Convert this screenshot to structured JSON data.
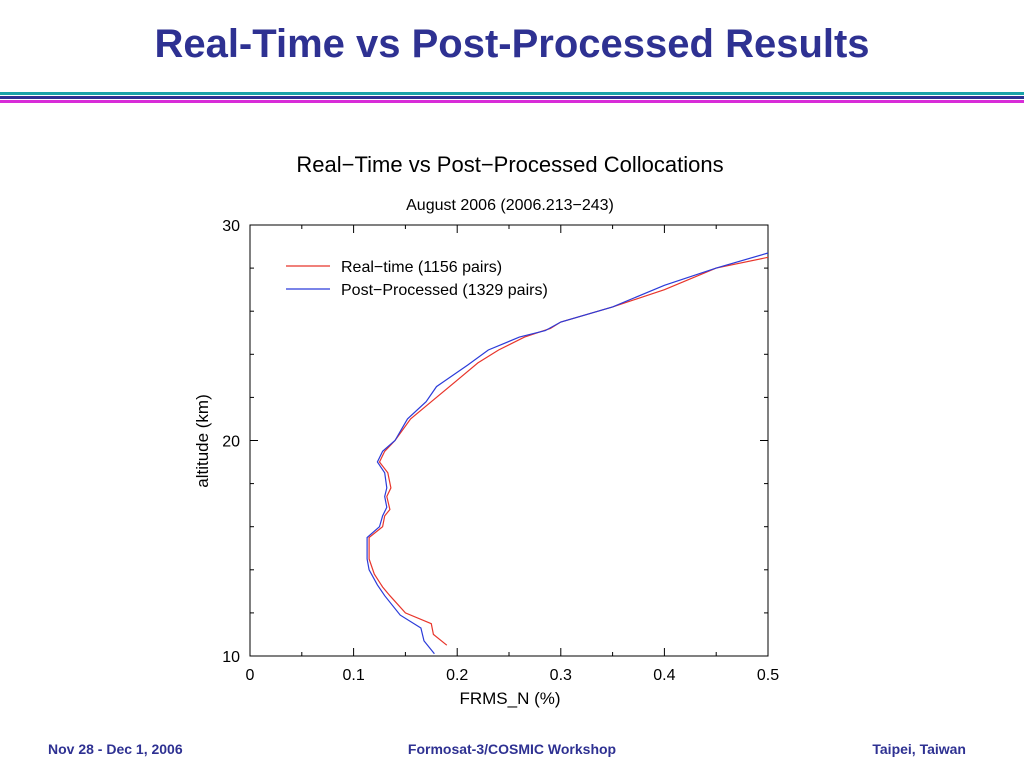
{
  "slide": {
    "title": "Real-Time vs Post-Processed Results"
  },
  "footer": {
    "left": "Nov 28 - Dec 1, 2006",
    "center": "Formosat-3/COSMIC Workshop",
    "right": "Taipei, Taiwan"
  },
  "colors": {
    "title_text": "#2e3192",
    "rule_teal": "#1aa3a8",
    "rule_navy": "#2e3192",
    "rule_magenta": "#d82cd8",
    "real_time": "#e8352b",
    "post_processed": "#2b3bd9"
  },
  "chart_data": {
    "type": "line",
    "title": "Real−Time vs Post−Processed Collocations",
    "subtitle": "August 2006 (2006.213−243)",
    "xlabel": "FRMS_N (%)",
    "ylabel": "altitude (km)",
    "xlim": [
      0,
      0.5
    ],
    "ylim": [
      10,
      30
    ],
    "xticks": [
      "0",
      "0.1",
      "0.2",
      "0.3",
      "0.4",
      "0.5"
    ],
    "yticks": [
      "10",
      "20",
      "30"
    ],
    "grid": false,
    "legend": "top-left",
    "series": [
      {
        "name": "Real−time (1156 pairs)",
        "color": "#e8352b",
        "points": [
          [
            0.19,
            10.5
          ],
          [
            0.177,
            11.0
          ],
          [
            0.175,
            11.5
          ],
          [
            0.15,
            12.0
          ],
          [
            0.135,
            12.8
          ],
          [
            0.128,
            13.2
          ],
          [
            0.12,
            13.8
          ],
          [
            0.115,
            14.5
          ],
          [
            0.115,
            15.5
          ],
          [
            0.128,
            16.0
          ],
          [
            0.13,
            16.5
          ],
          [
            0.135,
            16.8
          ],
          [
            0.132,
            17.4
          ],
          [
            0.136,
            17.8
          ],
          [
            0.133,
            18.5
          ],
          [
            0.125,
            19.0
          ],
          [
            0.13,
            19.5
          ],
          [
            0.14,
            20.0
          ],
          [
            0.155,
            21.0
          ],
          [
            0.175,
            21.8
          ],
          [
            0.2,
            22.8
          ],
          [
            0.22,
            23.6
          ],
          [
            0.24,
            24.2
          ],
          [
            0.265,
            24.8
          ],
          [
            0.29,
            25.2
          ],
          [
            0.3,
            25.5
          ],
          [
            0.35,
            26.2
          ],
          [
            0.4,
            27.0
          ],
          [
            0.45,
            28.0
          ],
          [
            0.5,
            28.5
          ]
        ]
      },
      {
        "name": "Post−Processed (1329 pairs)",
        "color": "#2b3bd9",
        "points": [
          [
            0.178,
            10.1
          ],
          [
            0.168,
            10.7
          ],
          [
            0.165,
            11.3
          ],
          [
            0.145,
            11.9
          ],
          [
            0.13,
            12.8
          ],
          [
            0.123,
            13.3
          ],
          [
            0.115,
            14.0
          ],
          [
            0.113,
            14.5
          ],
          [
            0.113,
            15.5
          ],
          [
            0.125,
            16.0
          ],
          [
            0.128,
            16.5
          ],
          [
            0.132,
            16.9
          ],
          [
            0.13,
            17.4
          ],
          [
            0.132,
            17.8
          ],
          [
            0.13,
            18.5
          ],
          [
            0.123,
            19.0
          ],
          [
            0.128,
            19.5
          ],
          [
            0.14,
            20.0
          ],
          [
            0.152,
            21.0
          ],
          [
            0.17,
            21.8
          ],
          [
            0.18,
            22.5
          ],
          [
            0.21,
            23.5
          ],
          [
            0.23,
            24.2
          ],
          [
            0.26,
            24.8
          ],
          [
            0.285,
            25.1
          ],
          [
            0.3,
            25.5
          ],
          [
            0.35,
            26.2
          ],
          [
            0.4,
            27.2
          ],
          [
            0.45,
            28.0
          ],
          [
            0.5,
            28.7
          ]
        ]
      }
    ]
  }
}
